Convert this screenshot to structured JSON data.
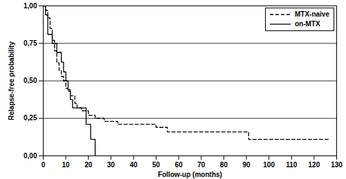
{
  "chart_data": {
    "type": "line",
    "x_label": "Follow-up (months)",
    "y_label": "Relapse-free probability",
    "xlim": [
      0,
      130
    ],
    "xticks": [
      0,
      10,
      20,
      30,
      40,
      50,
      60,
      70,
      80,
      90,
      100,
      110,
      120,
      130
    ],
    "ylim": [
      0,
      1
    ],
    "yticks": [
      {
        "value": 0,
        "label": "0,00"
      },
      {
        "value": 0.25,
        "label": "0,25"
      },
      {
        "value": 0.5,
        "label": "0,50"
      },
      {
        "value": 0.75,
        "label": "0,75"
      },
      {
        "value": 1,
        "label": "1,00"
      }
    ],
    "grid": true,
    "legend": "top right",
    "series": [
      {
        "name": "MTX-naive",
        "color": "#000000",
        "line_style": "dashed",
        "x": [
          0,
          1,
          2,
          3,
          4,
          5,
          6,
          7,
          8,
          9,
          10,
          11,
          12,
          14,
          15,
          17,
          20,
          23,
          27,
          33,
          50,
          55,
          91,
          127
        ],
        "values": [
          1,
          0.97,
          0.92,
          0.85,
          0.77,
          0.7,
          0.62,
          0.57,
          0.53,
          0.5,
          0.45,
          0.43,
          0.4,
          0.35,
          0.32,
          0.3,
          0.27,
          0.25,
          0.23,
          0.21,
          0.19,
          0.16,
          0.11,
          0.11
        ]
      },
      {
        "name": "on-MTX",
        "color": "#000000",
        "line_style": "solid",
        "x": [
          0,
          1,
          2,
          4,
          6,
          8,
          9,
          10,
          11,
          12,
          13,
          19,
          21,
          23
        ],
        "values": [
          1,
          0.94,
          0.81,
          0.75,
          0.69,
          0.625,
          0.56,
          0.5,
          0.44,
          0.375,
          0.32,
          0.21,
          0.11,
          0
        ]
      }
    ]
  }
}
